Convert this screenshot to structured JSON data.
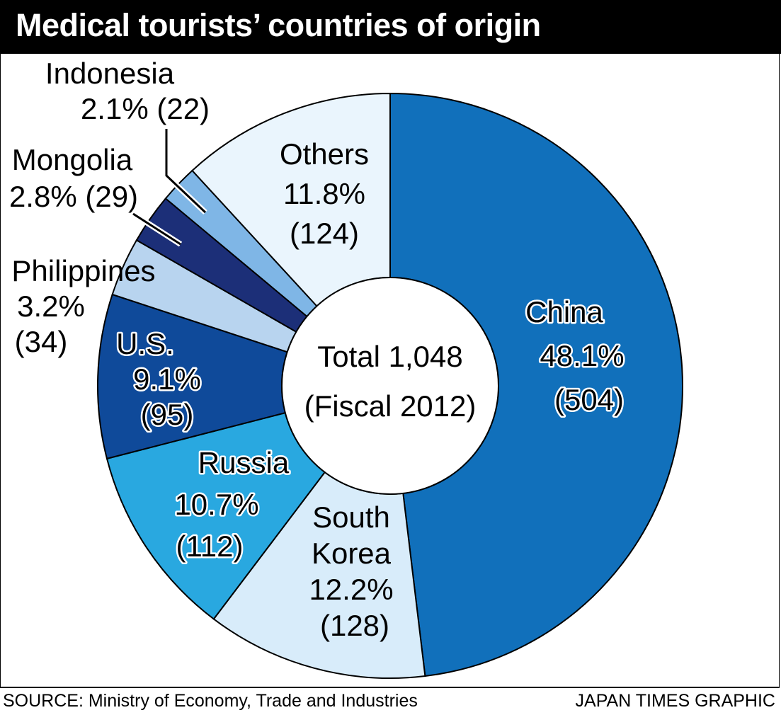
{
  "title": "Medical tourists’ countries of origin",
  "source": "SOURCE: Ministry of Economy, Trade and Industries",
  "credit": "JAPAN TIMES GRAPHIC",
  "chart_data": {
    "type": "pie",
    "style": "donut",
    "center_label": [
      "Total 1,048",
      "(Fiscal 2012)"
    ],
    "total": 1048,
    "categories": [
      "China",
      "South Korea",
      "Russia",
      "U.S.",
      "Philippines",
      "Mongolia",
      "Indonesia",
      "Others"
    ],
    "values": [
      504,
      128,
      112,
      95,
      34,
      29,
      22,
      124
    ],
    "percents": [
      "48.1%",
      "12.2%",
      "10.7%",
      "9.1%",
      "3.2%",
      "2.8%",
      "2.1%",
      "11.8%"
    ],
    "counts": [
      "(504)",
      "(128)",
      "(112)",
      "(95)",
      "(34)",
      "(29)",
      "(22)",
      "(124)"
    ],
    "colors": [
      "#1170bb",
      "#d8ecfa",
      "#29a8e0",
      "#0f4a9a",
      "#b8d4ef",
      "#1c2f78",
      "#7fb6e6",
      "#eaf5fd"
    ],
    "direction": "clockwise from top"
  }
}
